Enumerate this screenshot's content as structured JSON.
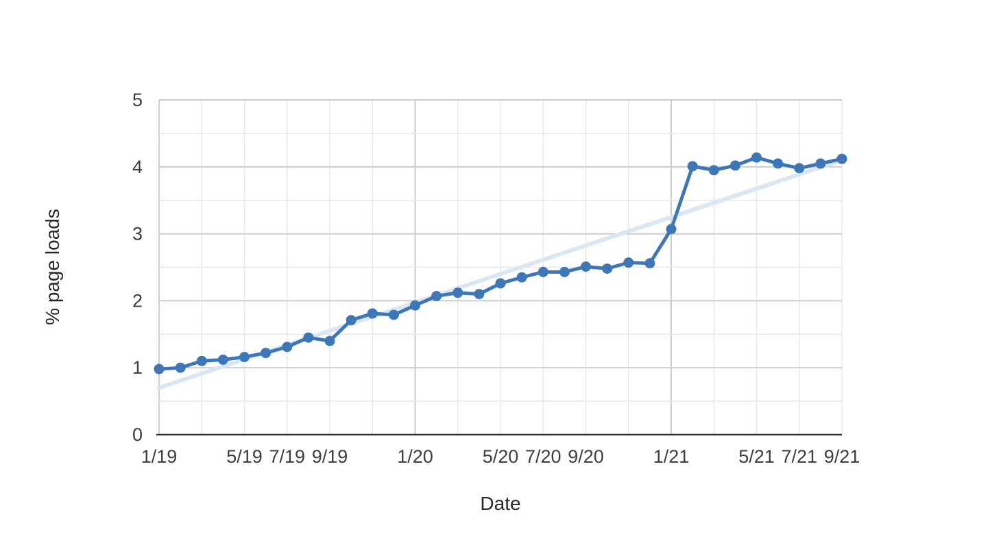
{
  "chart_data": {
    "type": "line",
    "title": "",
    "xlabel": "Date",
    "ylabel": "% page loads",
    "ylim": [
      0,
      5
    ],
    "y_major_step": 1,
    "y_minor_step": 0.5,
    "grid": true,
    "legend_position": "none",
    "x": [
      "1/19",
      "2/19",
      "3/19",
      "4/19",
      "5/19",
      "6/19",
      "7/19",
      "8/19",
      "9/19",
      "10/19",
      "11/19",
      "12/19",
      "1/20",
      "2/20",
      "3/20",
      "4/20",
      "5/20",
      "6/20",
      "7/20",
      "8/20",
      "9/20",
      "10/20",
      "11/20",
      "12/20",
      "1/21",
      "2/21",
      "3/21",
      "4/21",
      "5/21",
      "6/21",
      "7/21",
      "8/21",
      "9/21"
    ],
    "series": [
      {
        "name": "% page loads",
        "style": "line-with-markers",
        "values": [
          0.98,
          1.0,
          1.1,
          1.12,
          1.16,
          1.22,
          1.31,
          1.45,
          1.4,
          1.71,
          1.81,
          1.79,
          1.93,
          2.07,
          2.12,
          2.1,
          2.26,
          2.35,
          2.43,
          2.43,
          2.51,
          2.48,
          2.57,
          2.56,
          3.07,
          4.01,
          3.95,
          4.02,
          4.14,
          4.05,
          3.98,
          4.05,
          4.12
        ]
      }
    ],
    "trendline": {
      "name": "linear trend",
      "start_value": 0.7,
      "end_value": 4.1
    },
    "x_ticks": [
      {
        "pos": 0,
        "label": "1/19"
      },
      {
        "pos": 4,
        "label": "5/19"
      },
      {
        "pos": 6,
        "label": "7/19"
      },
      {
        "pos": 8,
        "label": "9/19"
      },
      {
        "pos": 12,
        "label": "1/20"
      },
      {
        "pos": 16,
        "label": "5/20"
      },
      {
        "pos": 18,
        "label": "7/20"
      },
      {
        "pos": 20,
        "label": "9/20"
      },
      {
        "pos": 24,
        "label": "1/21"
      },
      {
        "pos": 28,
        "label": "5/21"
      },
      {
        "pos": 30,
        "label": "7/21"
      },
      {
        "pos": 32,
        "label": "9/21"
      }
    ],
    "y_ticks": [
      "0",
      "1",
      "2",
      "3",
      "4",
      "5"
    ],
    "vertical_gridline_every_months": 2,
    "colors": {
      "line": "#3d77b7",
      "trend": "#d9e6f5",
      "grid_minor": "#e8e8e8",
      "grid_major": "#cccccc",
      "axis_line": "#333333",
      "tick_text": "#3b3f44",
      "title_text": "#24272b",
      "background": "#ffffff"
    }
  }
}
